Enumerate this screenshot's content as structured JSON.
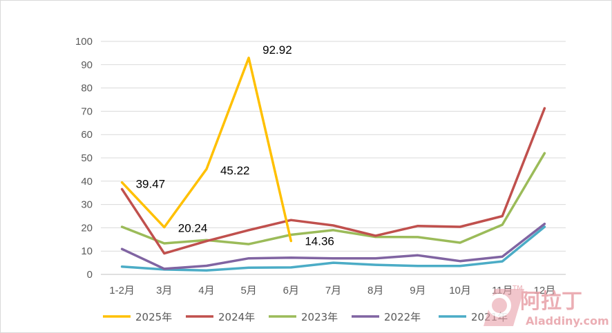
{
  "chart_data": {
    "type": "line",
    "title": "",
    "xlabel": "",
    "ylabel": "",
    "ylim": [
      0,
      100
    ],
    "y_ticks": [
      0,
      10,
      20,
      30,
      40,
      50,
      60,
      70,
      80,
      90,
      100
    ],
    "grid": "horizontal",
    "legend_position": "bottom",
    "categories": [
      "1-2月",
      "3月",
      "4月",
      "5月",
      "6月",
      "7月",
      "8月",
      "9月",
      "10月",
      "11月",
      "12月"
    ],
    "series": [
      {
        "name": "2025年",
        "color": "#FFC000",
        "values": [
          39.47,
          20.24,
          45.22,
          92.92,
          14.36,
          null,
          null,
          null,
          null,
          null,
          null
        ]
      },
      {
        "name": "2024年",
        "color": "#C0504D",
        "values": [
          36.6,
          9.0,
          14.3,
          19.0,
          23.3,
          21.0,
          16.6,
          20.8,
          20.4,
          25.0,
          71.3
        ]
      },
      {
        "name": "2023年",
        "color": "#9BBB59",
        "values": [
          20.4,
          13.3,
          14.7,
          13.0,
          17.0,
          19.0,
          16.1,
          16.0,
          13.6,
          21.3,
          52.0
        ]
      },
      {
        "name": "2022年",
        "color": "#8064A2",
        "values": [
          10.9,
          2.4,
          3.7,
          6.9,
          7.2,
          6.9,
          6.9,
          8.2,
          5.7,
          7.6,
          21.7
        ]
      },
      {
        "name": "2021年",
        "color": "#4BACC6",
        "values": [
          3.3,
          2.1,
          1.7,
          2.9,
          3.0,
          5.0,
          4.1,
          3.6,
          3.6,
          5.6,
          20.4
        ]
      }
    ],
    "data_labels": [
      {
        "series": "2025年",
        "category": "1-2月",
        "text": "39.47"
      },
      {
        "series": "2025年",
        "category": "3月",
        "text": "20.24"
      },
      {
        "series": "2025年",
        "category": "4月",
        "text": "45.22"
      },
      {
        "series": "2025年",
        "category": "5月",
        "text": "92.92"
      },
      {
        "series": "2025年",
        "category": "6月",
        "text": "14.36"
      }
    ]
  },
  "watermark": {
    "text": "阿拉丁",
    "trademark": "TM",
    "url": "Aladdiny.com",
    "color": "#E8A0A8"
  }
}
